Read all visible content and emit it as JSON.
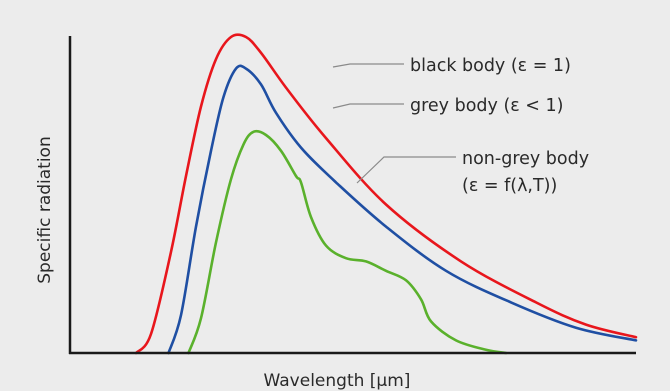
{
  "chart_data": {
    "type": "line",
    "title": "",
    "xlabel": "Wavelength [μm]",
    "ylabel": "Specific radiation",
    "x_ticks_shown": false,
    "y_ticks_shown": false,
    "grid": false,
    "legend": "inline labels with leader lines, right side",
    "series": [
      {
        "key": "black",
        "color": "#e8161c",
        "label_lines": [
          "black body (ε = 1)"
        ],
        "values": [
          [
            0,
            0
          ],
          [
            0.03,
            0.06
          ],
          [
            0.07,
            0.32
          ],
          [
            0.1,
            0.56
          ],
          [
            0.13,
            0.78
          ],
          [
            0.16,
            0.93
          ],
          [
            0.19,
            1.0
          ],
          [
            0.22,
            1.0
          ],
          [
            0.25,
            0.95
          ],
          [
            0.3,
            0.84
          ],
          [
            0.38,
            0.68
          ],
          [
            0.5,
            0.47
          ],
          [
            0.65,
            0.29
          ],
          [
            0.8,
            0.16
          ],
          [
            0.9,
            0.09
          ],
          [
            1.0,
            0.05
          ]
        ]
      },
      {
        "key": "grey",
        "color": "#1f4fa3",
        "label_lines": [
          "grey body (ε < 1)"
        ],
        "values": [
          [
            0.065,
            0
          ],
          [
            0.09,
            0.12
          ],
          [
            0.12,
            0.4
          ],
          [
            0.15,
            0.64
          ],
          [
            0.175,
            0.81
          ],
          [
            0.2,
            0.9
          ],
          [
            0.22,
            0.9
          ],
          [
            0.25,
            0.85
          ],
          [
            0.28,
            0.76
          ],
          [
            0.33,
            0.65
          ],
          [
            0.4,
            0.54
          ],
          [
            0.5,
            0.4
          ],
          [
            0.62,
            0.26
          ],
          [
            0.75,
            0.16
          ],
          [
            0.88,
            0.08
          ],
          [
            1.0,
            0.04
          ]
        ]
      },
      {
        "key": "nongrey",
        "color": "#5ab12c",
        "label_lines": [
          "non-grey body",
          "(ε = f(λ,T))"
        ],
        "values": [
          [
            0.105,
            0
          ],
          [
            0.13,
            0.11
          ],
          [
            0.16,
            0.35
          ],
          [
            0.19,
            0.55
          ],
          [
            0.215,
            0.66
          ],
          [
            0.235,
            0.7
          ],
          [
            0.26,
            0.69
          ],
          [
            0.29,
            0.64
          ],
          [
            0.32,
            0.56
          ],
          [
            0.33,
            0.54
          ],
          [
            0.35,
            0.43
          ],
          [
            0.38,
            0.34
          ],
          [
            0.42,
            0.3
          ],
          [
            0.46,
            0.29
          ],
          [
            0.5,
            0.26
          ],
          [
            0.54,
            0.23
          ],
          [
            0.57,
            0.17
          ],
          [
            0.59,
            0.1
          ],
          [
            0.64,
            0.04
          ],
          [
            0.7,
            0.01
          ],
          [
            0.74,
            0
          ]
        ]
      }
    ]
  }
}
